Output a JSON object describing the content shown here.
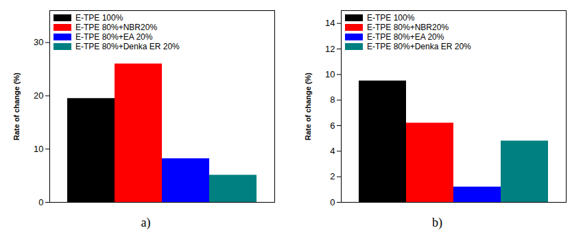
{
  "chart_data": [
    {
      "type": "bar",
      "title": "a)",
      "y_label": "Rate of change (%)",
      "categories": [
        "E-TPE 100%",
        "E-TPE 80%+NBR20%",
        "E-TPE 80%+EA 20%",
        "E-TPE 80%+Denka ER 20%"
      ],
      "values": [
        19.5,
        26,
        8.2,
        5.1
      ],
      "colors": [
        "#000000",
        "#ff0000",
        "#0000ff",
        "#008080"
      ],
      "ylim": [
        0,
        36
      ],
      "yticks": [
        0,
        10,
        20,
        30
      ],
      "legend": "upper left",
      "tick_labels": "y"
    },
    {
      "type": "bar",
      "title": "b)",
      "y_label": "Rate of change (%)",
      "categories": [
        "E-TPE 100%",
        "E-TPE 80%+NBR20%",
        "E-TPE 80%+EA 20%",
        "E-TPE 80%+Denka ER 20%"
      ],
      "values": [
        9.5,
        6.2,
        1.2,
        4.8
      ],
      "colors": [
        "#000000",
        "#ff0000",
        "#0000ff",
        "#008080"
      ],
      "ylim": [
        0,
        15
      ],
      "yticks": [
        0,
        2,
        4,
        6,
        8,
        10,
        12,
        14
      ],
      "legend": "upper left",
      "tick_labels": "y"
    }
  ]
}
